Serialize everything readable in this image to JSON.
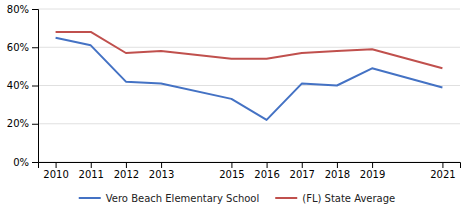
{
  "chart_data": {
    "type": "line",
    "x": [
      2010,
      2011,
      2012,
      2013,
      2015,
      2016,
      2017,
      2018,
      2019,
      2021
    ],
    "series": [
      {
        "name": "Vero Beach Elementary School",
        "color": "#4472C4",
        "values": [
          0.65,
          0.61,
          0.42,
          0.41,
          0.33,
          0.22,
          0.41,
          0.4,
          0.49,
          0.39
        ]
      },
      {
        "name": "(FL) State Average",
        "color": "#C0504D",
        "values": [
          0.68,
          0.68,
          0.57,
          0.58,
          0.54,
          0.54,
          0.57,
          0.58,
          0.59,
          0.49
        ]
      }
    ],
    "xlim": [
      2009.5,
      2021.5
    ],
    "xticks": [
      2010,
      2011,
      2012,
      2013,
      2015,
      2016,
      2017,
      2018,
      2019,
      2021
    ],
    "ylim": [
      0,
      0.8
    ],
    "yticks": [
      {
        "value": 0,
        "label": "0%"
      },
      {
        "value": 0.2,
        "label": "20%"
      },
      {
        "value": 0.4,
        "label": "40%"
      },
      {
        "value": 0.6,
        "label": "60%"
      },
      {
        "value": 0.8,
        "label": "80%"
      }
    ],
    "grid": true,
    "legend": "bottom"
  }
}
